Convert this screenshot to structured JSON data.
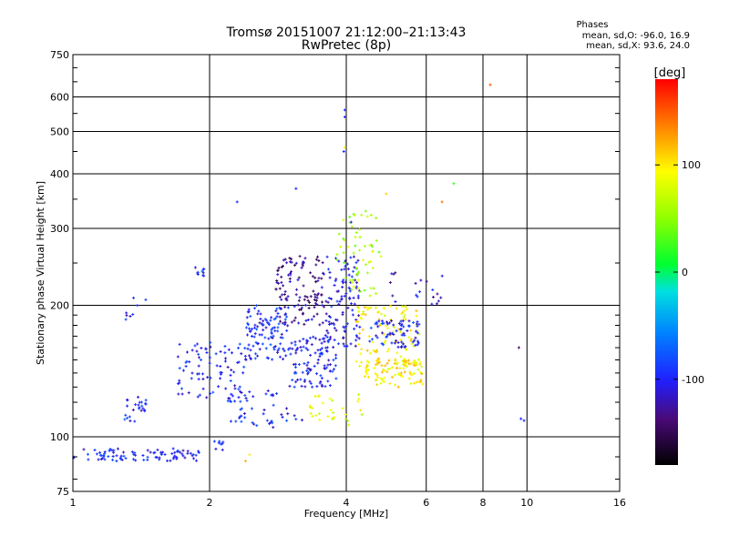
{
  "chart_data": {
    "type": "scatter",
    "title": "Tromsø 20151007 21:12:00–21:13:43",
    "subtitle": "RwPretec (8p)",
    "xlabel": "Frequency [MHz]",
    "ylabel": "Stationary phase Virtual Height [km]",
    "x_scale": "log2",
    "y_scale": "log",
    "xlim": [
      1,
      16
    ],
    "ylim": [
      75,
      750
    ],
    "x_ticks": [
      "1",
      "2",
      "4",
      "6",
      "8",
      "10",
      "16"
    ],
    "y_ticks": [
      "75",
      "100",
      "200",
      "300",
      "400",
      "500",
      "600",
      "750"
    ],
    "grid": true,
    "phases_box": {
      "title": "Phases",
      "line_o": "mean, sd,O: -96.0, 16.9",
      "line_x": "mean, sd,X:  93.6, 24.0"
    },
    "colorbar": {
      "label": "[deg]",
      "ticks": [
        "100",
        "0",
        "-100"
      ],
      "range": [
        -180,
        180
      ],
      "tick_values": [
        100,
        0,
        -100
      ]
    },
    "clusters": [
      {
        "x": [
          1.0,
          1.9
        ],
        "y": [
          88,
          94
        ],
        "n": 90,
        "phase": -100
      },
      {
        "x": [
          1.3,
          1.45
        ],
        "y": [
          108,
          125
        ],
        "n": 25,
        "phase": -100
      },
      {
        "x": [
          1.3,
          1.45
        ],
        "y": [
          185,
          212
        ],
        "n": 8,
        "phase": -100
      },
      {
        "x": [
          1.7,
          2.4
        ],
        "y": [
          120,
          165
        ],
        "n": 90,
        "phase": -100
      },
      {
        "x": [
          1.85,
          1.95
        ],
        "y": [
          233,
          245
        ],
        "n": 10,
        "phase": -100
      },
      {
        "x": [
          2.4,
          3.0
        ],
        "y": [
          150,
          200
        ],
        "n": 110,
        "phase": -95
      },
      {
        "x": [
          2.8,
          3.6
        ],
        "y": [
          180,
          260
        ],
        "n": 120,
        "phase": -130
      },
      {
        "x": [
          3.0,
          3.8
        ],
        "y": [
          130,
          170
        ],
        "n": 110,
        "phase": -100
      },
      {
        "x": [
          3.6,
          4.3
        ],
        "y": [
          160,
          260
        ],
        "n": 110,
        "phase": -105
      },
      {
        "x": [
          4.2,
          5.8
        ],
        "y": [
          145,
          200
        ],
        "n": 110,
        "phase": 95
      },
      {
        "x": [
          4.3,
          5.9
        ],
        "y": [
          130,
          150
        ],
        "n": 90,
        "phase": 100
      },
      {
        "x": [
          4.5,
          5.8
        ],
        "y": [
          160,
          185
        ],
        "n": 70,
        "phase": -100
      },
      {
        "x": [
          3.8,
          4.8
        ],
        "y": [
          210,
          330
        ],
        "n": 60,
        "phase": 60
      },
      {
        "x": [
          5.0,
          6.6
        ],
        "y": [
          200,
          240
        ],
        "n": 20,
        "phase": -110
      },
      {
        "x": [
          2.2,
          3.2
        ],
        "y": [
          105,
          128
        ],
        "n": 45,
        "phase": -100
      },
      {
        "x": [
          3.3,
          4.4
        ],
        "y": [
          105,
          125
        ],
        "n": 30,
        "phase": 80
      },
      {
        "x": [
          2.05,
          2.15
        ],
        "y": [
          93,
          100
        ],
        "n": 8,
        "phase": -100
      }
    ],
    "outliers": [
      {
        "x": 3.97,
        "y": 560,
        "phase": -100
      },
      {
        "x": 3.97,
        "y": 540,
        "phase": -100
      },
      {
        "x": 3.97,
        "y": 460,
        "phase": 100
      },
      {
        "x": 3.95,
        "y": 450,
        "phase": -100
      },
      {
        "x": 8.3,
        "y": 640,
        "phase": 150
      },
      {
        "x": 3.1,
        "y": 370,
        "phase": -100
      },
      {
        "x": 2.3,
        "y": 345,
        "phase": -100
      },
      {
        "x": 6.5,
        "y": 345,
        "phase": 140
      },
      {
        "x": 6.9,
        "y": 380,
        "phase": 20
      },
      {
        "x": 9.7,
        "y": 110,
        "phase": -100
      },
      {
        "x": 9.85,
        "y": 109,
        "phase": -100
      },
      {
        "x": 9.6,
        "y": 160,
        "phase": -140
      },
      {
        "x": 2.45,
        "y": 91,
        "phase": 100
      },
      {
        "x": 2.4,
        "y": 88,
        "phase": 120
      },
      {
        "x": 4.9,
        "y": 360,
        "phase": 110
      },
      {
        "x": 4.1,
        "y": 310,
        "phase": -100
      }
    ]
  }
}
